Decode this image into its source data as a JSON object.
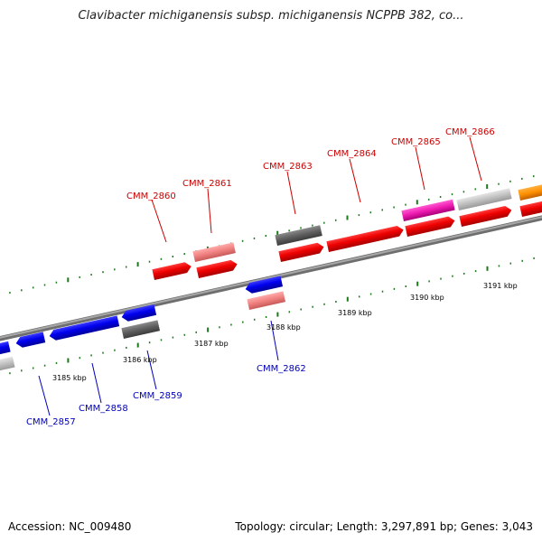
{
  "title": "Clavibacter michiganensis subsp. michiganensis NCPPB 382, co...",
  "footer": {
    "accession": "Accession: NC_009480",
    "summary": "Topology: circular; Length: 3,297,891 bp; Genes: 3,043"
  },
  "colors": {
    "backbone": "#8c8c8c",
    "forward_label": "#cc0000",
    "reverse_label": "#0000bb",
    "tick": "#1a7a1a"
  },
  "scale_labels": [
    "3185 kbp",
    "3186 kbp",
    "3187 kbp",
    "3188 kbp",
    "3189 kbp",
    "3190 kbp",
    "3191 kbp"
  ],
  "genes_forward": [
    {
      "label": "CMM_2860"
    },
    {
      "label": "CMM_2861"
    },
    {
      "label": "CMM_2863"
    },
    {
      "label": "CMM_2864"
    },
    {
      "label": "CMM_2865"
    },
    {
      "label": "CMM_2866"
    }
  ],
  "genes_reverse": [
    {
      "label": "CMM_2857"
    },
    {
      "label": "CMM_2858"
    },
    {
      "label": "CMM_2859"
    },
    {
      "label": "CMM_2862"
    }
  ]
}
